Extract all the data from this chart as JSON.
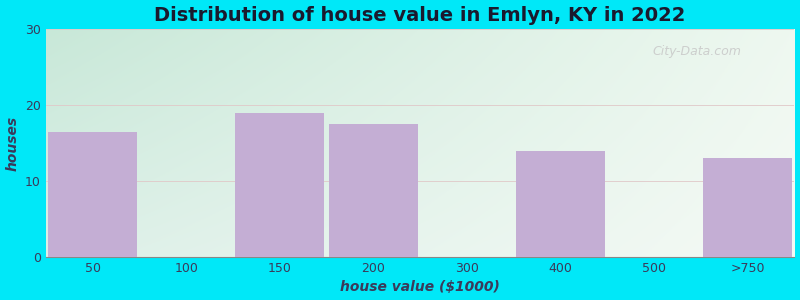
{
  "title": "Distribution of house value in Emlyn, KY in 2022",
  "xlabel": "house value ($1000)",
  "ylabel": "houses",
  "categories": [
    "50",
    "100",
    "150",
    "200",
    "300",
    "400",
    "500",
    ">750"
  ],
  "values": [
    16.5,
    0,
    19,
    17.5,
    0,
    14,
    0,
    13
  ],
  "bar_color": "#c4aed4",
  "ylim": [
    0,
    30
  ],
  "yticks": [
    0,
    10,
    20,
    30
  ],
  "background_outer": "#00e8f8",
  "grad_top_left": "#ddf0e8",
  "grad_top_right": "#f5faf5",
  "grad_bottom_left": "#c8e8d8",
  "grad_bottom_right": "#eef8f0",
  "grid_color": "#e0c8c8",
  "title_fontsize": 14,
  "axis_fontsize": 10,
  "tick_fontsize": 9,
  "title_color": "#1a1a2e",
  "label_color": "#3a3a5a",
  "watermark_text": "City-Data.com",
  "watermark_color": "#c8c8c8",
  "tick_label_color": "#3a3a5a"
}
